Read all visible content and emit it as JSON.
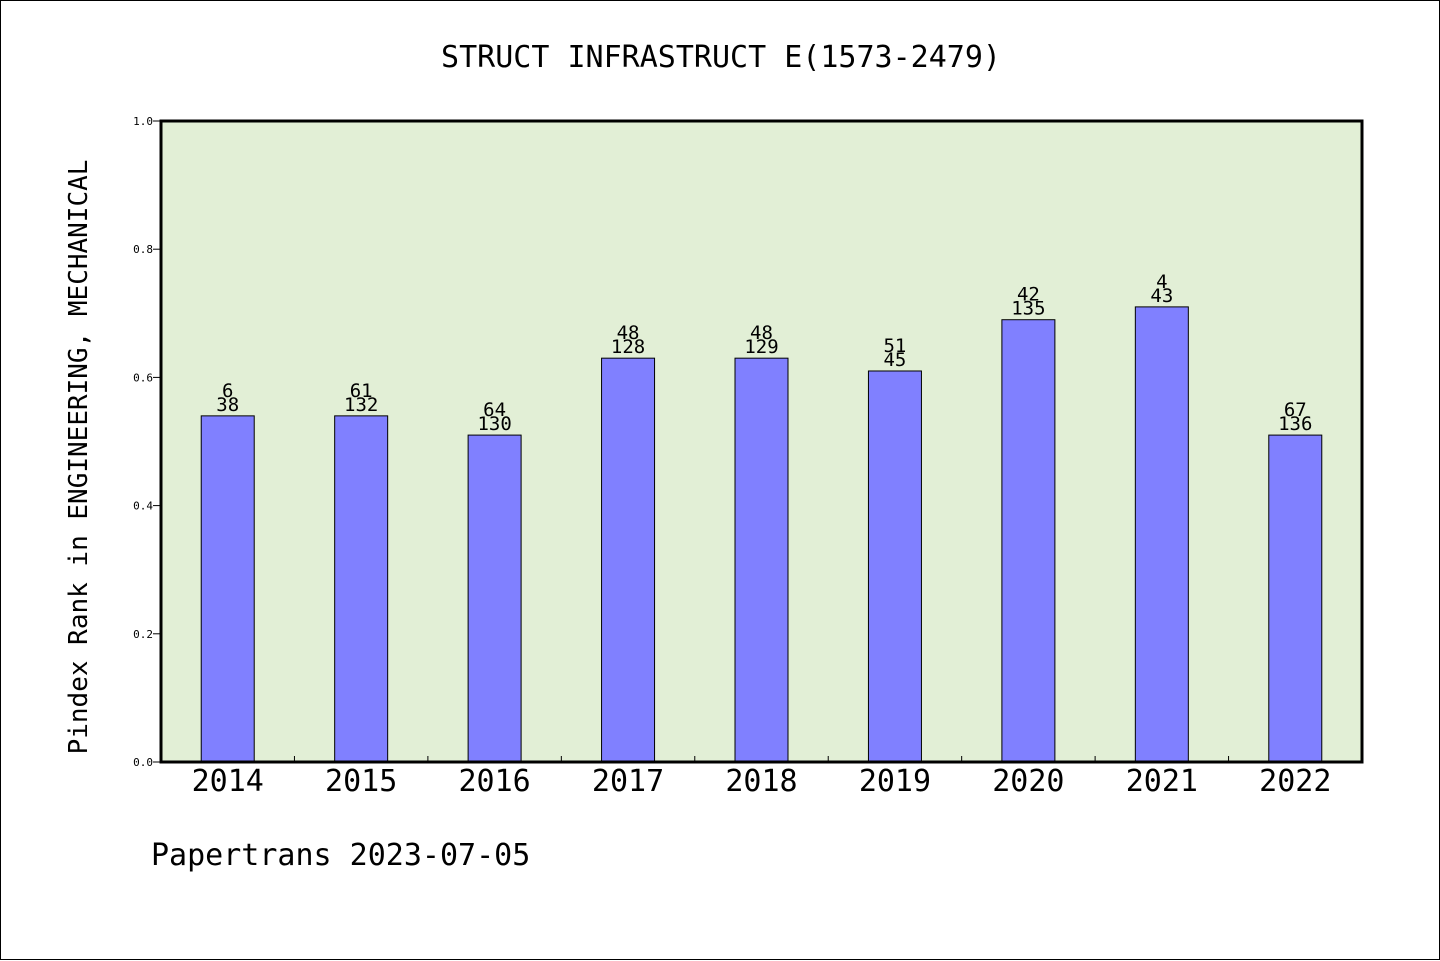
{
  "chart_data": {
    "type": "bar",
    "title": "STRUCT INFRASTRUCT E(1573-2479)",
    "ylabel": "Pindex Rank in ENGINEERING, MECHANICAL",
    "xlabel": "",
    "categories": [
      "2014",
      "2015",
      "2016",
      "2017",
      "2018",
      "2019",
      "2020",
      "2021",
      "2022"
    ],
    "values": [
      0.54,
      0.54,
      0.51,
      0.63,
      0.63,
      0.61,
      0.69,
      0.71,
      0.51
    ],
    "label_top": [
      "6",
      "61",
      "64",
      "48",
      "48",
      "51",
      "42",
      "4",
      "67"
    ],
    "label_bottom": [
      "38",
      "132",
      "130",
      "128",
      "129",
      "45",
      "135",
      "43",
      "136"
    ],
    "ylim": [
      0,
      1.0
    ],
    "yticks": [
      "0.0",
      "0.2",
      "0.4",
      "0.6",
      "0.8",
      "1.0"
    ],
    "grid": false,
    "colors": {
      "bar": "#8080ff",
      "plot_background": "#e2efd6",
      "page_background": "#ffffff",
      "axis": "#000000"
    }
  },
  "footer": {
    "credit": "Papertrans 2023-07-05"
  }
}
